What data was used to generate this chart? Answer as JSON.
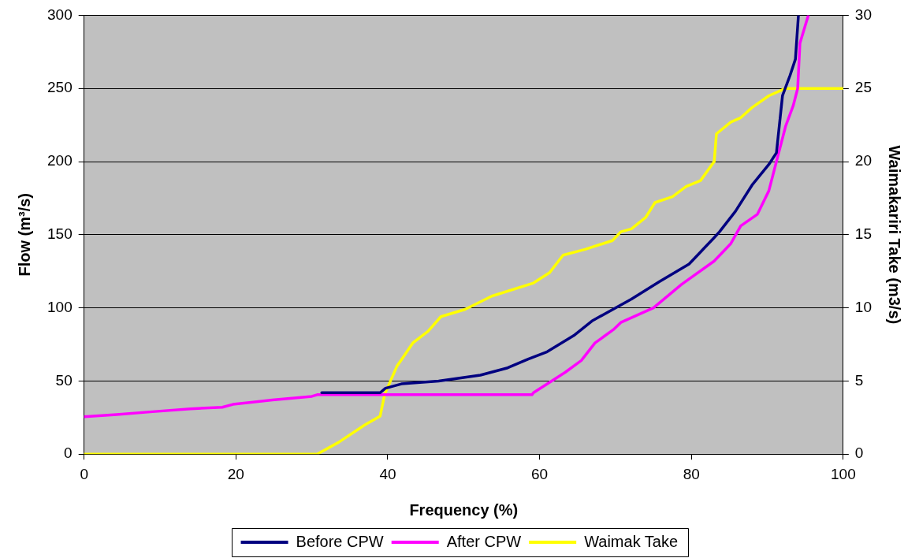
{
  "chart_data": {
    "type": "line",
    "xlabel": "Frequency (%)",
    "ylabel": "Flow (m³/s)",
    "y2label": "Waimakariri Take (m3/s)",
    "xlim": [
      0,
      100
    ],
    "xticks": [
      0,
      20,
      40,
      60,
      80,
      100
    ],
    "ylim": [
      0,
      300
    ],
    "yticks": [
      0,
      50,
      100,
      150,
      200,
      250,
      300
    ],
    "y2lim": [
      0,
      30
    ],
    "y2ticks": [
      0,
      5,
      10,
      15,
      20,
      25,
      30
    ],
    "grid": "y",
    "legend": "bottom",
    "marker": "none",
    "line_style": "solid",
    "series": [
      {
        "name": "Before CPW",
        "color": "#000080",
        "x": [
          31.3,
          39,
          39.7,
          41.8,
          46.7,
          52.2,
          55.8,
          58.5,
          61,
          64.5,
          66.9,
          72.1,
          75.8,
          79.7,
          83,
          83.7,
          85.8,
          88,
          90.2,
          91.2,
          92,
          93,
          93.7,
          94.1
        ],
        "values": [
          42,
          42,
          45,
          48,
          50,
          54,
          59,
          65,
          70,
          81,
          91,
          106,
          118,
          130,
          148,
          152,
          166,
          184,
          198,
          206,
          245,
          259,
          270,
          300
        ]
      },
      {
        "name": "After CPW",
        "color": "#ff00ff",
        "x": [
          0,
          4.3,
          9,
          14,
          18.2,
          19.6,
          24.8,
          30,
          30.7,
          59,
          59.2,
          61.3,
          63.4,
          65.5,
          67.3,
          69.7,
          70.7,
          75,
          78.7,
          83,
          85.2,
          86.5,
          88.7,
          90.2,
          91.2,
          92.4,
          93.4,
          94,
          94.3,
          95.4
        ],
        "values": [
          25.6,
          27,
          29,
          31,
          32,
          34,
          37,
          39.5,
          40.6,
          40.6,
          42,
          49,
          56,
          64,
          76,
          85,
          90,
          100,
          116,
          132,
          144,
          156,
          164,
          180,
          200,
          224,
          238,
          250,
          281,
          300
        ]
      },
      {
        "name": "Waimak Take",
        "color": "#ffff00",
        "axis": "y2",
        "x": [
          0,
          30.7,
          33.5,
          37,
          39,
          39.6,
          41.2,
          43.3,
          45.3,
          47,
          50.2,
          53.7,
          59.2,
          61.3,
          63.1,
          66,
          69.6,
          70.7,
          72.1,
          74,
          75.2,
          77.5,
          79.3,
          81.2,
          83,
          83.3,
          85.2,
          86.5,
          88,
          90.2,
          92.4,
          100
        ],
        "values": [
          0,
          0,
          0.8,
          2,
          2.6,
          4.1,
          6,
          7.6,
          8.4,
          9.4,
          9.9,
          10.8,
          11.7,
          12.4,
          13.6,
          14,
          14.6,
          15.2,
          15.4,
          16.2,
          17.2,
          17.6,
          18.3,
          18.7,
          20,
          21.9,
          22.7,
          23,
          23.7,
          24.5,
          25,
          25
        ]
      }
    ]
  }
}
